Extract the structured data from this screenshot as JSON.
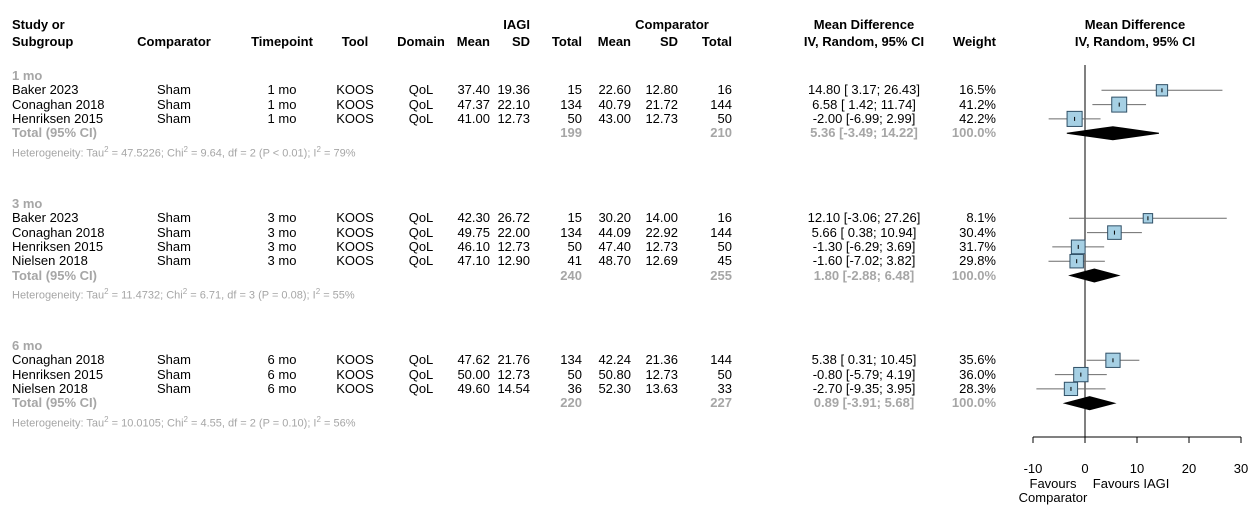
{
  "headers": {
    "study_l1": "Study or",
    "study_l2": "Subgroup",
    "comparator": "Comparator",
    "timepoint": "Timepoint",
    "tool": "Tool",
    "domain": "Domain",
    "iagi_top": "IAGI",
    "mean": "Mean",
    "sd": "SD",
    "total": "Total",
    "comp_top": "Comparator",
    "cmean": "Mean",
    "csd": "SD",
    "ctotal": "Total",
    "md_l1": "Mean Difference",
    "md_l2": "IV, Random, 95% CI",
    "weight": "Weight",
    "plot_l1": "Mean Difference",
    "plot_l2": "IV, Random, 95% CI"
  },
  "subgroups": [
    {
      "label": "1 mo",
      "rows": [
        {
          "study": "Baker 2023",
          "comparator": "Sham",
          "timepoint": "1 mo",
          "tool": "KOOS",
          "domain": "QoL",
          "mean": "37.40",
          "sd": "19.36",
          "total": "15",
          "cmean": "22.60",
          "csd": "12.80",
          "ctotal": "16",
          "ci": "14.80 [ 3.17; 26.43]",
          "weight": "16.5%"
        },
        {
          "study": "Conaghan 2018",
          "comparator": "Sham",
          "timepoint": "1 mo",
          "tool": "KOOS",
          "domain": "QoL",
          "mean": "47.37",
          "sd": "22.10",
          "total": "134",
          "cmean": "40.79",
          "csd": "21.72",
          "ctotal": "144",
          "ci": "6.58 [ 1.42; 11.74]",
          "weight": "41.2%"
        },
        {
          "study": "Henriksen 2015",
          "comparator": "Sham",
          "timepoint": "1 mo",
          "tool": "KOOS",
          "domain": "QoL",
          "mean": "41.00",
          "sd": "12.73",
          "total": "50",
          "cmean": "43.00",
          "csd": "12.73",
          "ctotal": "50",
          "ci": "-2.00 [-6.99; 2.99]",
          "weight": "42.2%"
        }
      ],
      "total": {
        "label": "Total (95% CI)",
        "total": "199",
        "ctotal": "210",
        "ci": "5.36 [-3.49; 14.22]",
        "weight": "100.0%"
      },
      "het": {
        "tau_pre": "Heterogeneity: Tau",
        "tau_post": " = 47.5226; Chi",
        "chi_post": " = 9.64, df = 2 (P < 0.01); I",
        "i_post": " = 79%"
      }
    },
    {
      "label": "3 mo",
      "rows": [
        {
          "study": "Baker 2023",
          "comparator": "Sham",
          "timepoint": "3 mo",
          "tool": "KOOS",
          "domain": "QoL",
          "mean": "42.30",
          "sd": "26.72",
          "total": "15",
          "cmean": "30.20",
          "csd": "14.00",
          "ctotal": "16",
          "ci": "12.10 [-3.06; 27.26]",
          "weight": "8.1%"
        },
        {
          "study": "Conaghan 2018",
          "comparator": "Sham",
          "timepoint": "3 mo",
          "tool": "KOOS",
          "domain": "QoL",
          "mean": "49.75",
          "sd": "22.00",
          "total": "134",
          "cmean": "44.09",
          "csd": "22.92",
          "ctotal": "144",
          "ci": "5.66 [ 0.38; 10.94]",
          "weight": "30.4%"
        },
        {
          "study": "Henriksen 2015",
          "comparator": "Sham",
          "timepoint": "3 mo",
          "tool": "KOOS",
          "domain": "QoL",
          "mean": "46.10",
          "sd": "12.73",
          "total": "50",
          "cmean": "47.40",
          "csd": "12.73",
          "ctotal": "50",
          "ci": "-1.30 [-6.29; 3.69]",
          "weight": "31.7%"
        },
        {
          "study": "Nielsen 2018",
          "comparator": "Sham",
          "timepoint": "3 mo",
          "tool": "KOOS",
          "domain": "QoL",
          "mean": "47.10",
          "sd": "12.90",
          "total": "41",
          "cmean": "48.70",
          "csd": "12.69",
          "ctotal": "45",
          "ci": "-1.60 [-7.02; 3.82]",
          "weight": "29.8%"
        }
      ],
      "total": {
        "label": "Total (95% CI)",
        "total": "240",
        "ctotal": "255",
        "ci": "1.80 [-2.88; 6.48]",
        "weight": "100.0%"
      },
      "het": {
        "tau_pre": "Heterogeneity: Tau",
        "tau_post": " = 11.4732; Chi",
        "chi_post": " = 6.71, df = 3 (P = 0.08); I",
        "i_post": " = 55%"
      }
    },
    {
      "label": "6 mo",
      "rows": [
        {
          "study": "Conaghan 2018",
          "comparator": "Sham",
          "timepoint": "6 mo",
          "tool": "KOOS",
          "domain": "QoL",
          "mean": "47.62",
          "sd": "21.76",
          "total": "134",
          "cmean": "42.24",
          "csd": "21.36",
          "ctotal": "144",
          "ci": "5.38 [ 0.31; 10.45]",
          "weight": "35.6%"
        },
        {
          "study": "Henriksen 2015",
          "comparator": "Sham",
          "timepoint": "6 mo",
          "tool": "KOOS",
          "domain": "QoL",
          "mean": "50.00",
          "sd": "12.73",
          "total": "50",
          "cmean": "50.80",
          "csd": "12.73",
          "ctotal": "50",
          "ci": "-0.80 [-5.79; 4.19]",
          "weight": "36.0%"
        },
        {
          "study": "Nielsen 2018",
          "comparator": "Sham",
          "timepoint": "6 mo",
          "tool": "KOOS",
          "domain": "QoL",
          "mean": "49.60",
          "sd": "14.54",
          "total": "36",
          "cmean": "52.30",
          "csd": "13.63",
          "ctotal": "33",
          "ci": "-2.70 [-9.35; 3.95]",
          "weight": "28.3%"
        }
      ],
      "total": {
        "label": "Total (95% CI)",
        "total": "220",
        "ctotal": "227",
        "ci": "0.89 [-3.91; 5.68]",
        "weight": "100.0%"
      },
      "het": {
        "tau_pre": "Heterogeneity: Tau",
        "tau_post": " = 10.0105; Chi",
        "chi_post": " = 4.55, df = 2 (P = 0.10); I",
        "i_post": " = 56%"
      }
    }
  ],
  "het_sup": "2",
  "axis": {
    "ticks": [
      "-10",
      "0",
      "10",
      "20",
      "30"
    ],
    "favours_left_l1": "Favours",
    "favours_left_l2": "Comparator",
    "favours_right": "Favours IAGI"
  },
  "chart_data": {
    "type": "forest",
    "title": "",
    "xlabel": "Mean Difference, IV, Random, 95% CI",
    "xlim": [
      -10,
      30
    ],
    "null_line": 0,
    "colors": {
      "box_fill": "#a6d0e4",
      "box_stroke": "#2f4f66",
      "diamond": "#000000"
    },
    "groups": [
      {
        "name": "1 mo",
        "studies": [
          {
            "study": "Baker 2023",
            "md": 14.8,
            "lo": 3.17,
            "hi": 26.43,
            "weight": 16.5
          },
          {
            "study": "Conaghan 2018",
            "md": 6.58,
            "lo": 1.42,
            "hi": 11.74,
            "weight": 41.2
          },
          {
            "study": "Henriksen 2015",
            "md": -2.0,
            "lo": -6.99,
            "hi": 2.99,
            "weight": 42.2
          }
        ],
        "pooled": {
          "md": 5.36,
          "lo": -3.49,
          "hi": 14.22
        }
      },
      {
        "name": "3 mo",
        "studies": [
          {
            "study": "Baker 2023",
            "md": 12.1,
            "lo": -3.06,
            "hi": 27.26,
            "weight": 8.1
          },
          {
            "study": "Conaghan 2018",
            "md": 5.66,
            "lo": 0.38,
            "hi": 10.94,
            "weight": 30.4
          },
          {
            "study": "Henriksen 2015",
            "md": -1.3,
            "lo": -6.29,
            "hi": 3.69,
            "weight": 31.7
          },
          {
            "study": "Nielsen 2018",
            "md": -1.6,
            "lo": -7.02,
            "hi": 3.82,
            "weight": 29.8
          }
        ],
        "pooled": {
          "md": 1.8,
          "lo": -2.88,
          "hi": 6.48
        }
      },
      {
        "name": "6 mo",
        "studies": [
          {
            "study": "Conaghan 2018",
            "md": 5.38,
            "lo": 0.31,
            "hi": 10.45,
            "weight": 35.6
          },
          {
            "study": "Henriksen 2015",
            "md": -0.8,
            "lo": -5.79,
            "hi": 4.19,
            "weight": 36.0
          },
          {
            "study": "Nielsen 2018",
            "md": -2.7,
            "lo": -9.35,
            "hi": 3.95,
            "weight": 28.3
          }
        ],
        "pooled": {
          "md": 0.89,
          "lo": -3.91,
          "hi": 5.68
        }
      }
    ]
  }
}
